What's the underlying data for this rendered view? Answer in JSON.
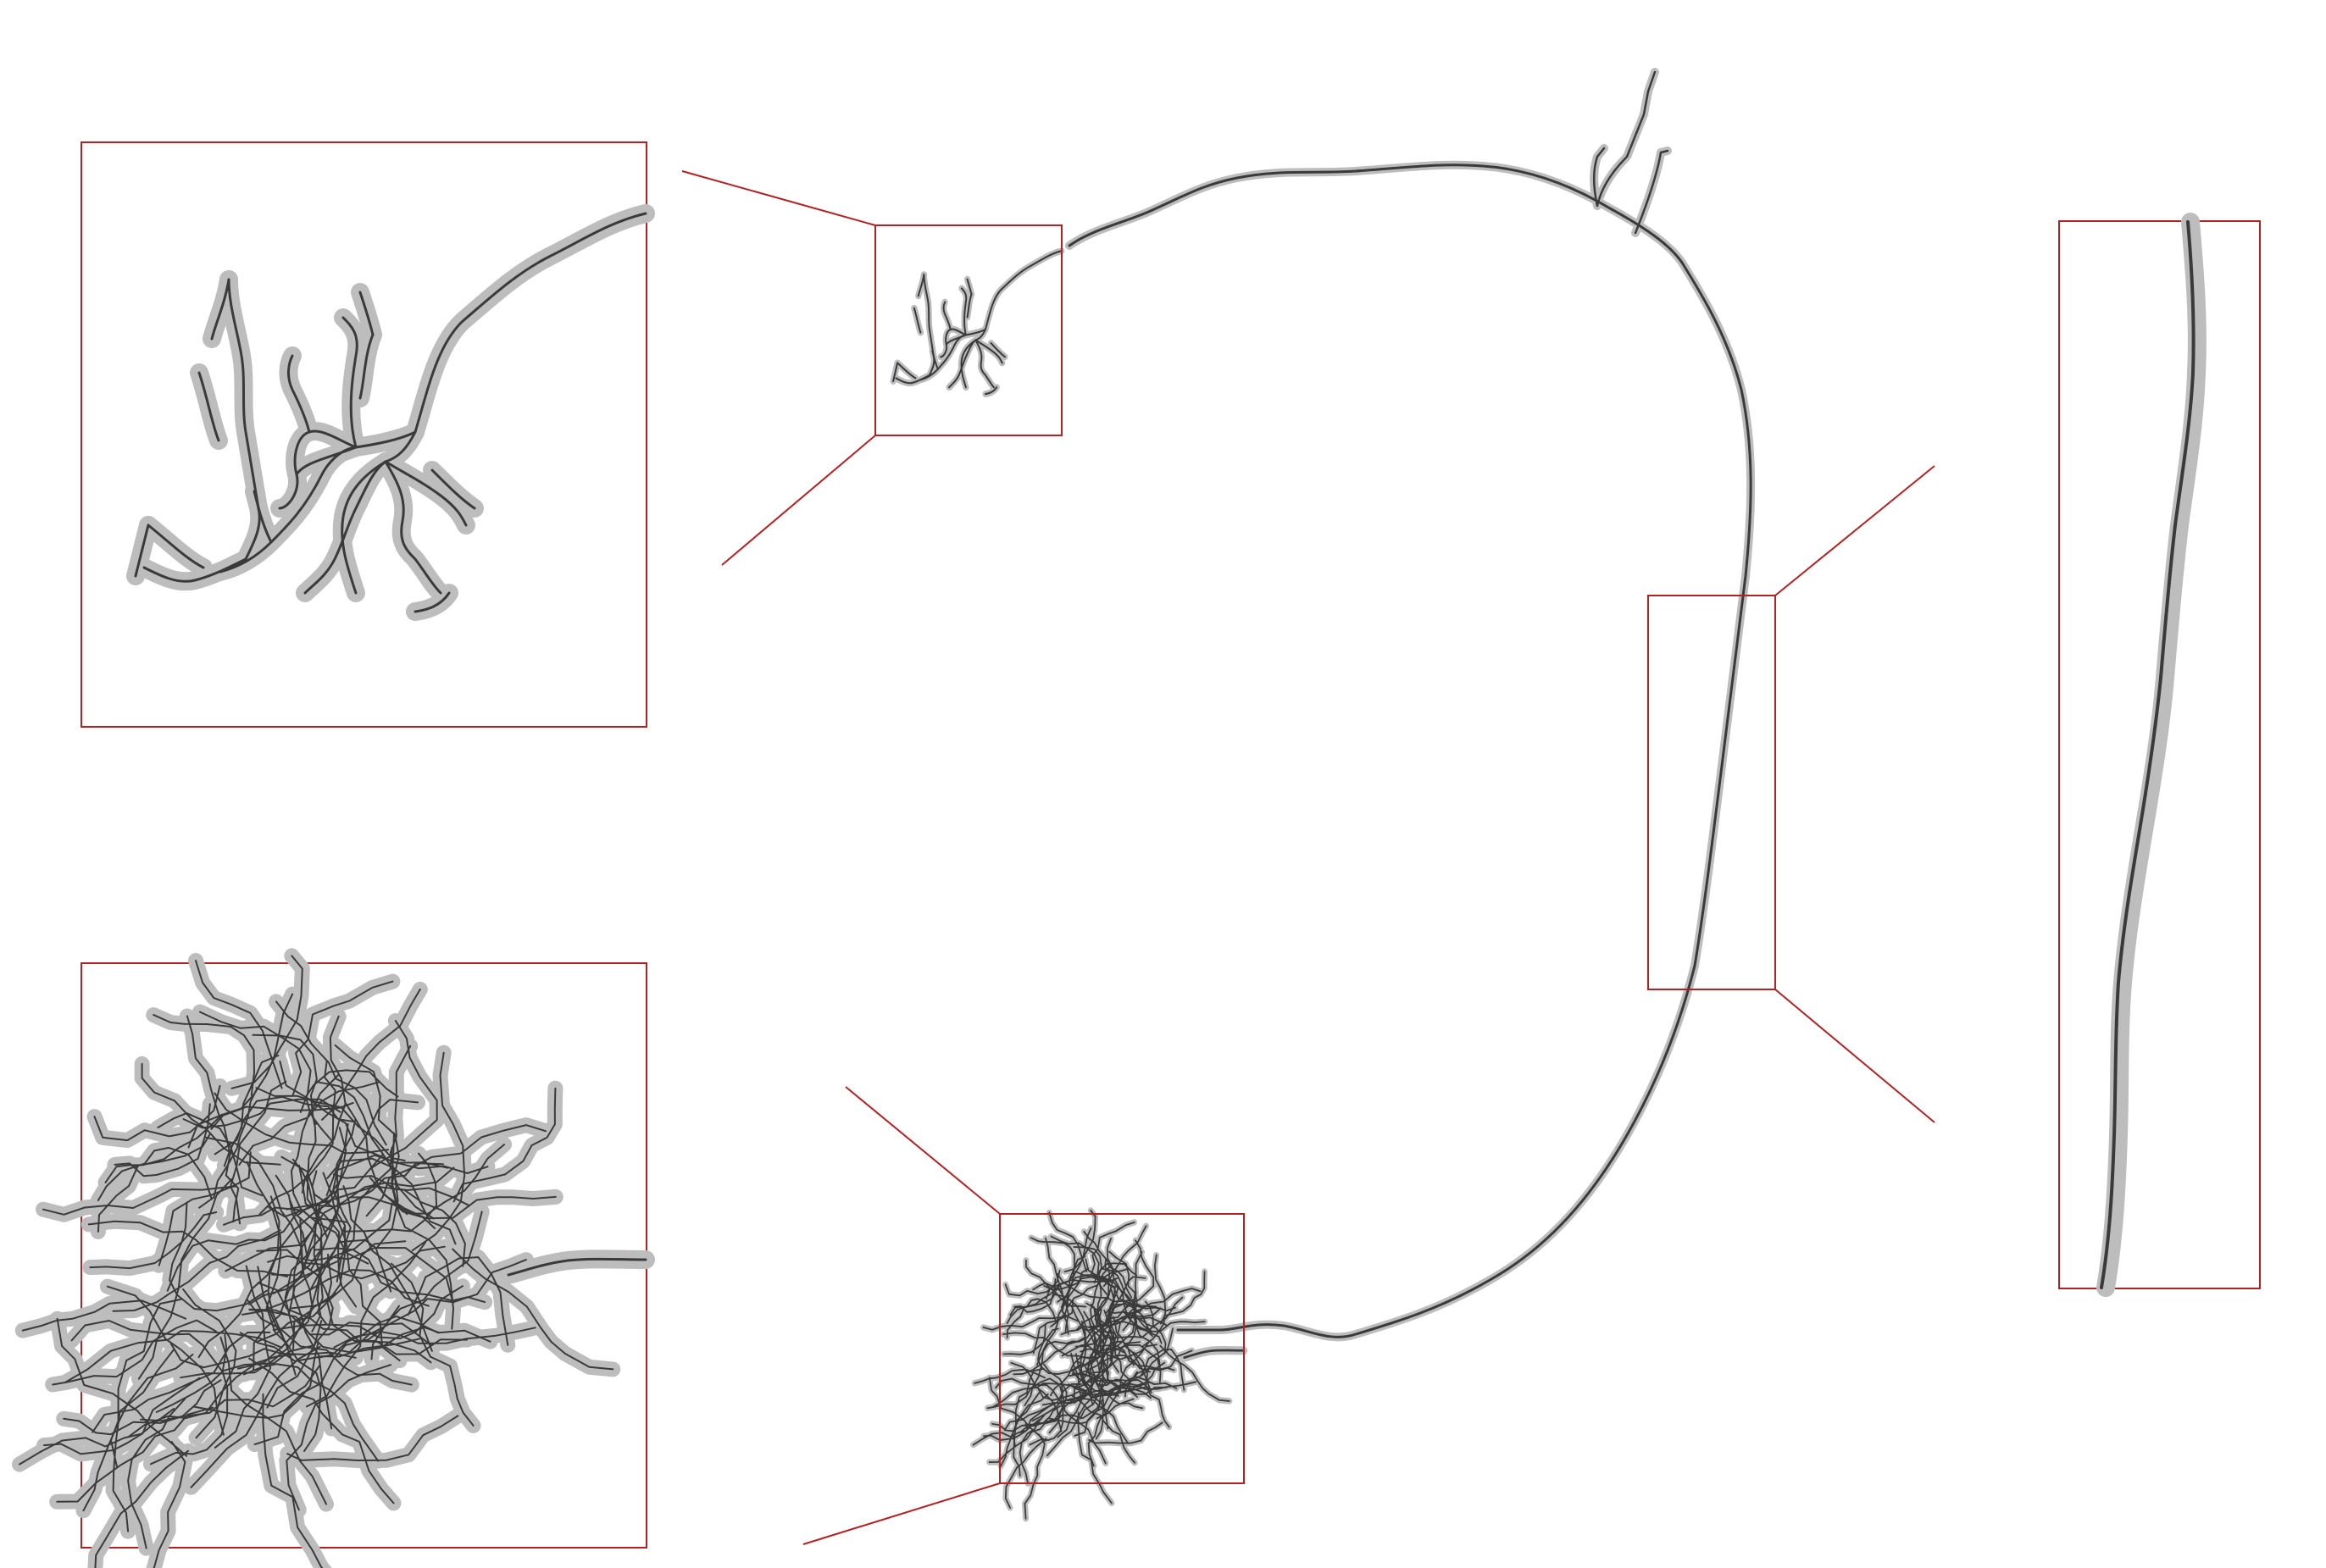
{
  "colors": {
    "background": "#ffffff",
    "highlight_box": "#b22222",
    "neuron_core": "#3a3a3a",
    "neuron_halo": "#bdbdbd"
  },
  "figure": {
    "panels": [
      {
        "id": "dendrite-zoom",
        "magnified_region": "dendritic-arbor"
      },
      {
        "id": "axon-terminal-zoom",
        "magnified_region": "axon-terminal-arbor"
      },
      {
        "id": "axon-shaft-zoom",
        "magnified_region": "axon-shaft"
      }
    ]
  }
}
